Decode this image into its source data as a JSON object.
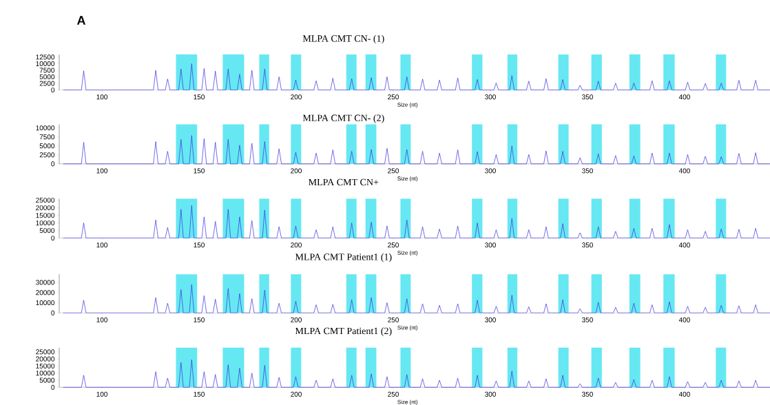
{
  "chart_data": [
    {
      "type": "line",
      "title": "MLPA CMT CN- (1)",
      "xlabel": "Size (nt)",
      "annotations": [
        "A"
      ],
      "xlim": [
        78,
        444
      ],
      "xticks": [
        100,
        150,
        200,
        250,
        300,
        350,
        400
      ],
      "ylim": [
        0,
        13500
      ],
      "yticks": [
        0,
        2500,
        5000,
        7500,
        10000,
        12500
      ],
      "x": [
        80,
        89.4,
        90.6,
        91.8,
        126.5,
        127.7,
        128.9,
        132.6,
        133.8,
        135,
        139.5,
        140.7,
        141.9,
        145,
        146.2,
        147.4,
        151.4,
        152.6,
        153.8,
        157.2,
        158.4,
        159.6,
        163.8,
        165,
        166.2,
        169.7,
        170.9,
        172.1,
        176,
        177.2,
        178.4,
        182.6,
        183.8,
        185,
        190,
        191.2,
        192.4,
        198.6,
        199.8,
        201,
        209.1,
        210.3,
        211.5,
        217.7,
        218.9,
        220.1,
        227.4,
        228.6,
        229.8,
        237.5,
        238.7,
        239.9,
        245.6,
        246.8,
        248,
        255.8,
        257,
        258.2,
        263.9,
        265.1,
        266.3,
        272.6,
        273.8,
        275,
        282,
        283.2,
        284.4,
        292.1,
        293.3,
        294.5,
        301.8,
        303,
        304.2,
        309.9,
        311.1,
        312.3,
        318.6,
        319.8,
        321,
        327.5,
        328.7,
        329.9,
        336.1,
        337.3,
        338.5,
        345,
        346.2,
        347.4,
        354.4,
        355.6,
        356.8,
        363.3,
        364.5,
        365.7,
        372.7,
        373.9,
        375.1,
        382.1,
        383.3,
        384.5,
        391,
        392.2,
        393.4,
        400.4,
        401.6,
        402.8,
        409.5,
        410.7,
        411.9,
        417.7,
        418.9,
        420.1,
        426.8,
        428,
        429.2,
        435.4,
        436.6,
        437.8,
        444
      ],
      "bands": [
        {
          "axis": "x",
          "from": 138.1,
          "to": 149.0,
          "color": "#66e8f2"
        },
        {
          "axis": "x",
          "from": 162.2,
          "to": 173.2,
          "color": "#66e8f2"
        },
        {
          "axis": "x",
          "from": 181.0,
          "to": 186.1,
          "color": "#66e8f2"
        },
        {
          "axis": "x",
          "from": 197.3,
          "to": 202.6,
          "color": "#66e8f2"
        },
        {
          "axis": "x",
          "from": 225.8,
          "to": 231.1,
          "color": "#66e8f2"
        },
        {
          "axis": "x",
          "from": 235.7,
          "to": 241.3,
          "color": "#66e8f2"
        },
        {
          "axis": "x",
          "from": 253.7,
          "to": 259.0,
          "color": "#66e8f2"
        },
        {
          "axis": "x",
          "from": 290.5,
          "to": 295.9,
          "color": "#66e8f2"
        },
        {
          "axis": "x",
          "from": 308.8,
          "to": 313.9,
          "color": "#66e8f2"
        },
        {
          "axis": "x",
          "from": 335.0,
          "to": 340.3,
          "color": "#66e8f2"
        },
        {
          "axis": "x",
          "from": 352.0,
          "to": 357.4,
          "color": "#66e8f2"
        },
        {
          "axis": "x",
          "from": 371.6,
          "to": 377.2,
          "color": "#66e8f2"
        },
        {
          "axis": "x",
          "from": 389.1,
          "to": 394.9,
          "color": "#66e8f2"
        },
        {
          "axis": "x",
          "from": 416.1,
          "to": 421.4,
          "color": "#66e8f2"
        }
      ],
      "series": [
        {
          "color": "#3a2ee0",
          "values": [
            0,
            0,
            7300,
            0,
            0,
            7500,
            0,
            0,
            4200,
            0,
            0,
            8000,
            0,
            0,
            10000,
            0,
            0,
            8200,
            0,
            0,
            7200,
            0,
            0,
            8000,
            0,
            0,
            6000,
            0,
            0,
            7500,
            0,
            0,
            8000,
            0,
            0,
            5000,
            0,
            0,
            3800,
            0,
            0,
            3500,
            0,
            0,
            4500,
            0,
            0,
            4300,
            0,
            0,
            4700,
            0,
            0,
            5000,
            0,
            0,
            5000,
            0,
            0,
            4200,
            0,
            0,
            3800,
            0,
            0,
            4600,
            0,
            0,
            4000,
            0,
            0,
            2700,
            0,
            0,
            5500,
            0,
            0,
            3400,
            0,
            0,
            4300,
            0,
            0,
            4000,
            0,
            0,
            1800,
            0,
            0,
            3400,
            0,
            0,
            2600,
            0,
            0,
            2700,
            0,
            0,
            3500,
            0,
            0,
            3500,
            0,
            0,
            3000,
            0,
            0,
            2500,
            0,
            0,
            2600,
            0,
            0,
            3700,
            0,
            0,
            3700,
            0,
            0
          ]
        }
      ]
    },
    {
      "type": "line",
      "title": "MLPA CMT CN- (2)",
      "xlabel": "Size (nt)",
      "xlim": [
        78,
        444
      ],
      "xticks": [
        100,
        150,
        200,
        250,
        300,
        350,
        400
      ],
      "ylim": [
        0,
        11000
      ],
      "yticks": [
        0,
        2500,
        5000,
        7500,
        10000
      ],
      "x": [
        80,
        89.4,
        90.6,
        91.8,
        126.5,
        127.7,
        128.9,
        132.6,
        133.8,
        135,
        139.5,
        140.7,
        141.9,
        145,
        146.2,
        147.4,
        151.4,
        152.6,
        153.8,
        157.2,
        158.4,
        159.6,
        163.8,
        165,
        166.2,
        169.7,
        170.9,
        172.1,
        176,
        177.2,
        178.4,
        182.6,
        183.8,
        185,
        190,
        191.2,
        192.4,
        198.6,
        199.8,
        201,
        209.1,
        210.3,
        211.5,
        217.7,
        218.9,
        220.1,
        227.4,
        228.6,
        229.8,
        237.5,
        238.7,
        239.9,
        245.6,
        246.8,
        248,
        255.8,
        257,
        258.2,
        263.9,
        265.1,
        266.3,
        272.6,
        273.8,
        275,
        282,
        283.2,
        284.4,
        292.1,
        293.3,
        294.5,
        301.8,
        303,
        304.2,
        309.9,
        311.1,
        312.3,
        318.6,
        319.8,
        321,
        327.5,
        328.7,
        329.9,
        336.1,
        337.3,
        338.5,
        345,
        346.2,
        347.4,
        354.4,
        355.6,
        356.8,
        363.3,
        364.5,
        365.7,
        372.7,
        373.9,
        375.1,
        382.1,
        383.3,
        384.5,
        391,
        392.2,
        393.4,
        400.4,
        401.6,
        402.8,
        409.5,
        410.7,
        411.9,
        417.7,
        418.9,
        420.1,
        426.8,
        428,
        429.2,
        435.4,
        436.6,
        437.8,
        444
      ],
      "bands": [
        {
          "axis": "x",
          "from": 138.1,
          "to": 149.0,
          "color": "#66e8f2"
        },
        {
          "axis": "x",
          "from": 162.2,
          "to": 173.2,
          "color": "#66e8f2"
        },
        {
          "axis": "x",
          "from": 181.0,
          "to": 186.1,
          "color": "#66e8f2"
        },
        {
          "axis": "x",
          "from": 197.3,
          "to": 202.6,
          "color": "#66e8f2"
        },
        {
          "axis": "x",
          "from": 225.8,
          "to": 231.1,
          "color": "#66e8f2"
        },
        {
          "axis": "x",
          "from": 235.7,
          "to": 241.3,
          "color": "#66e8f2"
        },
        {
          "axis": "x",
          "from": 253.7,
          "to": 259.0,
          "color": "#66e8f2"
        },
        {
          "axis": "x",
          "from": 290.5,
          "to": 295.9,
          "color": "#66e8f2"
        },
        {
          "axis": "x",
          "from": 308.8,
          "to": 313.9,
          "color": "#66e8f2"
        },
        {
          "axis": "x",
          "from": 335.0,
          "to": 340.3,
          "color": "#66e8f2"
        },
        {
          "axis": "x",
          "from": 352.0,
          "to": 357.4,
          "color": "#66e8f2"
        },
        {
          "axis": "x",
          "from": 371.6,
          "to": 377.2,
          "color": "#66e8f2"
        },
        {
          "axis": "x",
          "from": 389.1,
          "to": 394.9,
          "color": "#66e8f2"
        },
        {
          "axis": "x",
          "from": 416.1,
          "to": 421.4,
          "color": "#66e8f2"
        }
      ],
      "series": [
        {
          "color": "#3a2ee0",
          "values": [
            0,
            0,
            6000,
            0,
            0,
            6200,
            0,
            0,
            3500,
            0,
            0,
            6800,
            0,
            0,
            7900,
            0,
            0,
            7000,
            0,
            0,
            6000,
            0,
            0,
            6800,
            0,
            0,
            5200,
            0,
            0,
            5700,
            0,
            0,
            6200,
            0,
            0,
            4200,
            0,
            0,
            3200,
            0,
            0,
            3000,
            0,
            0,
            3900,
            0,
            0,
            3500,
            0,
            0,
            4000,
            0,
            0,
            4300,
            0,
            0,
            4000,
            0,
            0,
            3500,
            0,
            0,
            3000,
            0,
            0,
            3900,
            0,
            0,
            3400,
            0,
            0,
            2600,
            0,
            0,
            5000,
            0,
            0,
            2600,
            0,
            0,
            3600,
            0,
            0,
            3500,
            0,
            0,
            1700,
            0,
            0,
            2800,
            0,
            0,
            2300,
            0,
            0,
            2200,
            0,
            0,
            3000,
            0,
            0,
            3000,
            0,
            0,
            2600,
            0,
            0,
            2100,
            0,
            0,
            2000,
            0,
            0,
            2900,
            0,
            0,
            3100,
            0,
            0
          ]
        }
      ]
    },
    {
      "type": "line",
      "title": "MLPA CMT CN+",
      "xlabel": "Size (nt)",
      "xlim": [
        78,
        444
      ],
      "xticks": [
        100,
        150,
        200,
        250,
        300,
        350,
        400
      ],
      "ylim": [
        0,
        26000
      ],
      "yticks": [
        0,
        5000,
        10000,
        15000,
        20000,
        25000
      ],
      "x": [
        80,
        89.4,
        90.6,
        91.8,
        126.5,
        127.7,
        128.9,
        132.6,
        133.8,
        135,
        139.5,
        140.7,
        141.9,
        145,
        146.2,
        147.4,
        151.4,
        152.6,
        153.8,
        157.2,
        158.4,
        159.6,
        163.8,
        165,
        166.2,
        169.7,
        170.9,
        172.1,
        176,
        177.2,
        178.4,
        182.6,
        183.8,
        185,
        190,
        191.2,
        192.4,
        198.6,
        199.8,
        201,
        209.1,
        210.3,
        211.5,
        217.7,
        218.9,
        220.1,
        227.4,
        228.6,
        229.8,
        237.5,
        238.7,
        239.9,
        245.6,
        246.8,
        248,
        255.8,
        257,
        258.2,
        263.9,
        265.1,
        266.3,
        272.6,
        273.8,
        275,
        282,
        283.2,
        284.4,
        292.1,
        293.3,
        294.5,
        301.8,
        303,
        304.2,
        309.9,
        311.1,
        312.3,
        318.6,
        319.8,
        321,
        327.5,
        328.7,
        329.9,
        336.1,
        337.3,
        338.5,
        345,
        346.2,
        347.4,
        354.4,
        355.6,
        356.8,
        363.3,
        364.5,
        365.7,
        372.7,
        373.9,
        375.1,
        382.1,
        383.3,
        384.5,
        391,
        392.2,
        393.4,
        400.4,
        401.6,
        402.8,
        409.5,
        410.7,
        411.9,
        417.7,
        418.9,
        420.1,
        426.8,
        428,
        429.2,
        435.4,
        436.6,
        437.8,
        444
      ],
      "bands": [
        {
          "axis": "x",
          "from": 138.1,
          "to": 149.0,
          "color": "#66e8f2"
        },
        {
          "axis": "x",
          "from": 162.2,
          "to": 173.2,
          "color": "#66e8f2"
        },
        {
          "axis": "x",
          "from": 181.0,
          "to": 186.1,
          "color": "#66e8f2"
        },
        {
          "axis": "x",
          "from": 197.3,
          "to": 202.6,
          "color": "#66e8f2"
        },
        {
          "axis": "x",
          "from": 225.8,
          "to": 231.1,
          "color": "#66e8f2"
        },
        {
          "axis": "x",
          "from": 235.7,
          "to": 241.3,
          "color": "#66e8f2"
        },
        {
          "axis": "x",
          "from": 253.7,
          "to": 259.0,
          "color": "#66e8f2"
        },
        {
          "axis": "x",
          "from": 290.5,
          "to": 295.9,
          "color": "#66e8f2"
        },
        {
          "axis": "x",
          "from": 308.8,
          "to": 313.9,
          "color": "#66e8f2"
        },
        {
          "axis": "x",
          "from": 335.0,
          "to": 340.3,
          "color": "#66e8f2"
        },
        {
          "axis": "x",
          "from": 352.0,
          "to": 357.4,
          "color": "#66e8f2"
        },
        {
          "axis": "x",
          "from": 371.6,
          "to": 377.2,
          "color": "#66e8f2"
        },
        {
          "axis": "x",
          "from": 389.1,
          "to": 394.9,
          "color": "#66e8f2"
        },
        {
          "axis": "x",
          "from": 416.1,
          "to": 421.4,
          "color": "#66e8f2"
        }
      ],
      "series": [
        {
          "color": "#3a2ee0",
          "values": [
            0,
            0,
            10000,
            0,
            0,
            12000,
            0,
            0,
            7000,
            0,
            0,
            19000,
            0,
            0,
            21500,
            0,
            0,
            14000,
            0,
            0,
            11000,
            0,
            0,
            19000,
            0,
            0,
            14000,
            0,
            0,
            11500,
            0,
            0,
            18500,
            0,
            0,
            7500,
            0,
            0,
            8000,
            0,
            0,
            5500,
            0,
            0,
            7500,
            0,
            0,
            10000,
            0,
            0,
            10500,
            0,
            0,
            8000,
            0,
            0,
            12000,
            0,
            0,
            7500,
            0,
            0,
            6000,
            0,
            0,
            8000,
            0,
            0,
            10000,
            0,
            0,
            5500,
            0,
            0,
            13000,
            0,
            0,
            5500,
            0,
            0,
            7500,
            0,
            0,
            9500,
            0,
            0,
            3500,
            0,
            0,
            7500,
            0,
            0,
            4500,
            0,
            0,
            6500,
            0,
            0,
            6500,
            0,
            0,
            9000,
            0,
            0,
            5500,
            0,
            0,
            4500,
            0,
            0,
            6000,
            0,
            0,
            5800,
            0,
            0,
            6500,
            0,
            0
          ]
        }
      ]
    },
    {
      "type": "line",
      "title": "MLPA CMT Patient1 (1)",
      "xlabel": "Size (nt)",
      "xlim": [
        78,
        444
      ],
      "xticks": [
        100,
        150,
        200,
        250,
        300,
        350,
        400
      ],
      "ylim": [
        0,
        38000
      ],
      "yticks": [
        0,
        10000,
        20000,
        30000
      ],
      "x": [
        80,
        89.4,
        90.6,
        91.8,
        126.5,
        127.7,
        128.9,
        132.6,
        133.8,
        135,
        139.5,
        140.7,
        141.9,
        145,
        146.2,
        147.4,
        151.4,
        152.6,
        153.8,
        157.2,
        158.4,
        159.6,
        163.8,
        165,
        166.2,
        169.7,
        170.9,
        172.1,
        176,
        177.2,
        178.4,
        182.6,
        183.8,
        185,
        190,
        191.2,
        192.4,
        198.6,
        199.8,
        201,
        209.1,
        210.3,
        211.5,
        217.7,
        218.9,
        220.1,
        227.4,
        228.6,
        229.8,
        237.5,
        238.7,
        239.9,
        245.6,
        246.8,
        248,
        255.8,
        257,
        258.2,
        263.9,
        265.1,
        266.3,
        272.6,
        273.8,
        275,
        282,
        283.2,
        284.4,
        292.1,
        293.3,
        294.5,
        301.8,
        303,
        304.2,
        309.9,
        311.1,
        312.3,
        318.6,
        319.8,
        321,
        327.5,
        328.7,
        329.9,
        336.1,
        337.3,
        338.5,
        345,
        346.2,
        347.4,
        354.4,
        355.6,
        356.8,
        363.3,
        364.5,
        365.7,
        372.7,
        373.9,
        375.1,
        382.1,
        383.3,
        384.5,
        391,
        392.2,
        393.4,
        400.4,
        401.6,
        402.8,
        409.5,
        410.7,
        411.9,
        417.7,
        418.9,
        420.1,
        426.8,
        428,
        429.2,
        435.4,
        436.6,
        437.8,
        444
      ],
      "bands": [
        {
          "axis": "x",
          "from": 138.1,
          "to": 149.0,
          "color": "#66e8f2"
        },
        {
          "axis": "x",
          "from": 162.2,
          "to": 173.2,
          "color": "#66e8f2"
        },
        {
          "axis": "x",
          "from": 181.0,
          "to": 186.1,
          "color": "#66e8f2"
        },
        {
          "axis": "x",
          "from": 197.3,
          "to": 202.6,
          "color": "#66e8f2"
        },
        {
          "axis": "x",
          "from": 225.8,
          "to": 231.1,
          "color": "#66e8f2"
        },
        {
          "axis": "x",
          "from": 235.7,
          "to": 241.3,
          "color": "#66e8f2"
        },
        {
          "axis": "x",
          "from": 253.7,
          "to": 259.0,
          "color": "#66e8f2"
        },
        {
          "axis": "x",
          "from": 290.5,
          "to": 295.9,
          "color": "#66e8f2"
        },
        {
          "axis": "x",
          "from": 308.8,
          "to": 313.9,
          "color": "#66e8f2"
        },
        {
          "axis": "x",
          "from": 335.0,
          "to": 340.3,
          "color": "#66e8f2"
        },
        {
          "axis": "x",
          "from": 352.0,
          "to": 357.4,
          "color": "#66e8f2"
        },
        {
          "axis": "x",
          "from": 371.6,
          "to": 377.2,
          "color": "#66e8f2"
        },
        {
          "axis": "x",
          "from": 389.1,
          "to": 394.9,
          "color": "#66e8f2"
        },
        {
          "axis": "x",
          "from": 416.1,
          "to": 421.4,
          "color": "#66e8f2"
        }
      ],
      "series": [
        {
          "color": "#3a2ee0",
          "values": [
            0,
            0,
            12500,
            0,
            0,
            15000,
            0,
            0,
            9500,
            0,
            0,
            23000,
            0,
            0,
            28000,
            0,
            0,
            17000,
            0,
            0,
            13500,
            0,
            0,
            24000,
            0,
            0,
            19000,
            0,
            0,
            14000,
            0,
            0,
            22500,
            0,
            0,
            9500,
            0,
            0,
            11500,
            0,
            0,
            8000,
            0,
            0,
            8500,
            0,
            0,
            13000,
            0,
            0,
            15000,
            0,
            0,
            10000,
            0,
            0,
            14000,
            0,
            0,
            9000,
            0,
            0,
            7500,
            0,
            0,
            9000,
            0,
            0,
            12500,
            0,
            0,
            6500,
            0,
            0,
            17500,
            0,
            0,
            6000,
            0,
            0,
            9000,
            0,
            0,
            13000,
            0,
            0,
            4000,
            0,
            0,
            10500,
            0,
            0,
            5500,
            0,
            0,
            9500,
            0,
            0,
            8000,
            0,
            0,
            11000,
            0,
            0,
            6500,
            0,
            0,
            5500,
            0,
            0,
            7500,
            0,
            0,
            7000,
            0,
            0,
            8000,
            0,
            0
          ]
        }
      ]
    },
    {
      "type": "line",
      "title": "MLPA CMT Patient1 (2)",
      "xlabel": "Size (nt)",
      "xlim": [
        78,
        444
      ],
      "xticks": [
        100,
        150,
        200,
        250,
        300,
        350,
        400
      ],
      "ylim": [
        0,
        28000
      ],
      "yticks": [
        0,
        5000,
        10000,
        15000,
        20000,
        25000
      ],
      "x": [
        80,
        89.4,
        90.6,
        91.8,
        126.5,
        127.7,
        128.9,
        132.6,
        133.8,
        135,
        139.5,
        140.7,
        141.9,
        145,
        146.2,
        147.4,
        151.4,
        152.6,
        153.8,
        157.2,
        158.4,
        159.6,
        163.8,
        165,
        166.2,
        169.7,
        170.9,
        172.1,
        176,
        177.2,
        178.4,
        182.6,
        183.8,
        185,
        190,
        191.2,
        192.4,
        198.6,
        199.8,
        201,
        209.1,
        210.3,
        211.5,
        217.7,
        218.9,
        220.1,
        227.4,
        228.6,
        229.8,
        237.5,
        238.7,
        239.9,
        245.6,
        246.8,
        248,
        255.8,
        257,
        258.2,
        263.9,
        265.1,
        266.3,
        272.6,
        273.8,
        275,
        282,
        283.2,
        284.4,
        292.1,
        293.3,
        294.5,
        301.8,
        303,
        304.2,
        309.9,
        311.1,
        312.3,
        318.6,
        319.8,
        321,
        327.5,
        328.7,
        329.9,
        336.1,
        337.3,
        338.5,
        345,
        346.2,
        347.4,
        354.4,
        355.6,
        356.8,
        363.3,
        364.5,
        365.7,
        372.7,
        373.9,
        375.1,
        382.1,
        383.3,
        384.5,
        391,
        392.2,
        393.4,
        400.4,
        401.6,
        402.8,
        409.5,
        410.7,
        411.9,
        417.7,
        418.9,
        420.1,
        426.8,
        428,
        429.2,
        435.4,
        436.6,
        437.8,
        444
      ],
      "bands": [
        {
          "axis": "x",
          "from": 138.1,
          "to": 149.0,
          "color": "#66e8f2"
        },
        {
          "axis": "x",
          "from": 162.2,
          "to": 173.2,
          "color": "#66e8f2"
        },
        {
          "axis": "x",
          "from": 181.0,
          "to": 186.1,
          "color": "#66e8f2"
        },
        {
          "axis": "x",
          "from": 197.3,
          "to": 202.6,
          "color": "#66e8f2"
        },
        {
          "axis": "x",
          "from": 225.8,
          "to": 231.1,
          "color": "#66e8f2"
        },
        {
          "axis": "x",
          "from": 235.7,
          "to": 241.3,
          "color": "#66e8f2"
        },
        {
          "axis": "x",
          "from": 253.7,
          "to": 259.0,
          "color": "#66e8f2"
        },
        {
          "axis": "x",
          "from": 290.5,
          "to": 295.9,
          "color": "#66e8f2"
        },
        {
          "axis": "x",
          "from": 308.8,
          "to": 313.9,
          "color": "#66e8f2"
        },
        {
          "axis": "x",
          "from": 335.0,
          "to": 340.3,
          "color": "#66e8f2"
        },
        {
          "axis": "x",
          "from": 352.0,
          "to": 357.4,
          "color": "#66e8f2"
        },
        {
          "axis": "x",
          "from": 371.6,
          "to": 377.2,
          "color": "#66e8f2"
        },
        {
          "axis": "x",
          "from": 389.1,
          "to": 394.9,
          "color": "#66e8f2"
        },
        {
          "axis": "x",
          "from": 416.1,
          "to": 421.4,
          "color": "#66e8f2"
        }
      ],
      "series": [
        {
          "color": "#3a2ee0",
          "values": [
            0,
            0,
            8500,
            0,
            0,
            11000,
            0,
            0,
            6500,
            0,
            0,
            17500,
            0,
            0,
            19500,
            0,
            0,
            11000,
            0,
            0,
            9000,
            0,
            0,
            16000,
            0,
            0,
            13500,
            0,
            0,
            10000,
            0,
            0,
            15500,
            0,
            0,
            7000,
            0,
            0,
            7500,
            0,
            0,
            5000,
            0,
            0,
            6000,
            0,
            0,
            8500,
            0,
            0,
            9500,
            0,
            0,
            7500,
            0,
            0,
            9000,
            0,
            0,
            6000,
            0,
            0,
            5000,
            0,
            0,
            6500,
            0,
            0,
            8500,
            0,
            0,
            4500,
            0,
            0,
            11500,
            0,
            0,
            4500,
            0,
            0,
            6000,
            0,
            0,
            8500,
            0,
            0,
            2500,
            0,
            0,
            6500,
            0,
            0,
            3500,
            0,
            0,
            5500,
            0,
            0,
            5000,
            0,
            0,
            7500,
            0,
            0,
            4000,
            0,
            0,
            3500,
            0,
            0,
            5000,
            0,
            0,
            4500,
            0,
            0,
            5000,
            0,
            0
          ]
        }
      ]
    }
  ]
}
